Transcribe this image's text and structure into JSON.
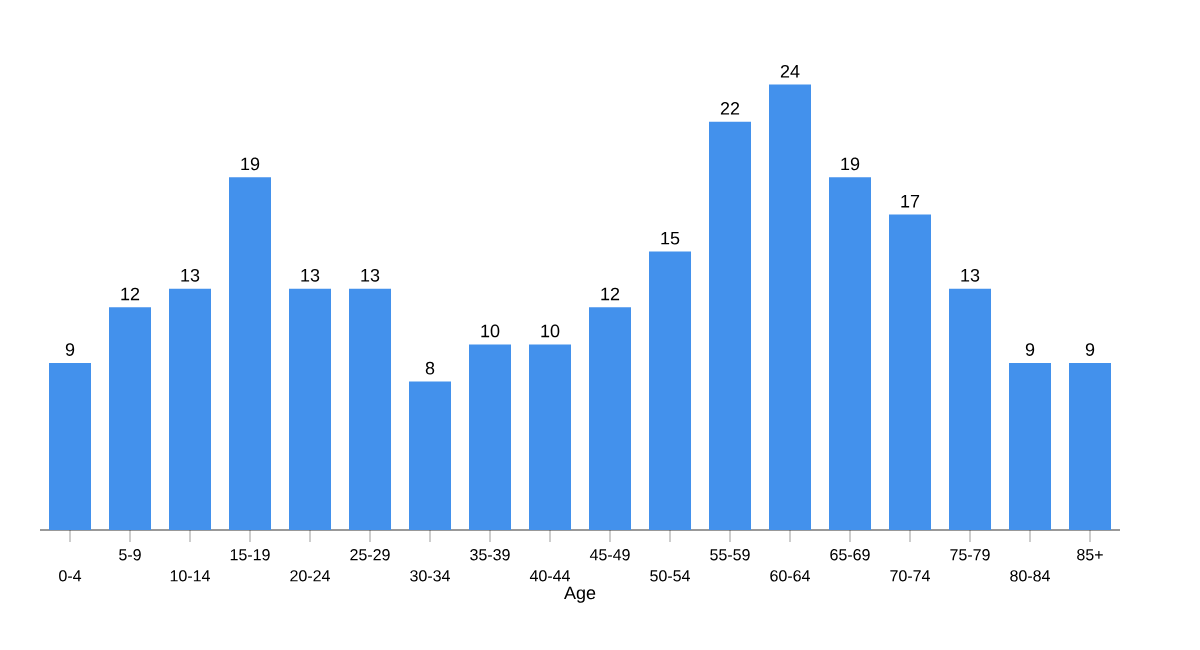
{
  "chart_data": {
    "type": "bar",
    "xlabel": "Age",
    "categories": [
      "0-4",
      "5-9",
      "10-14",
      "15-19",
      "20-24",
      "25-29",
      "30-34",
      "35-39",
      "40-44",
      "45-49",
      "50-54",
      "55-59",
      "60-64",
      "65-69",
      "70-74",
      "75-79",
      "80-84",
      "85+"
    ],
    "values": [
      9,
      12,
      13,
      19,
      13,
      13,
      8,
      10,
      10,
      12,
      15,
      22,
      24,
      19,
      17,
      13,
      9,
      9
    ],
    "color": "#4391ec",
    "data_labels": true
  }
}
